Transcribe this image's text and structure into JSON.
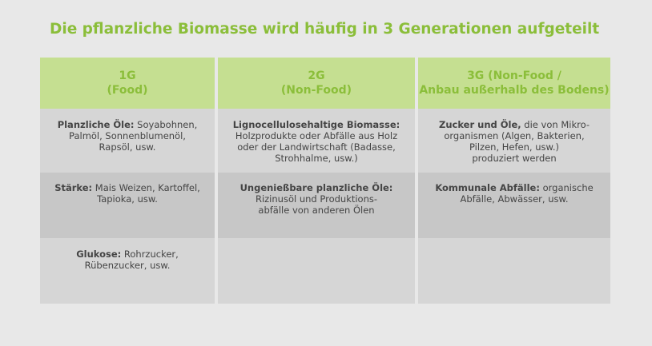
{
  "title": "Die pflanzliche Biomasse wird häufig in 3 Generationen aufgeteilt",
  "colors": {
    "accent": "#8bbe3a",
    "header_bg": "#c5df91",
    "row_light": "#d6d6d6",
    "row_dark": "#c7c7c7",
    "page_bg": "#e8e8e8"
  },
  "columns": [
    {
      "head_line1": "1G",
      "head_line2": "(Food)",
      "rows": [
        {
          "label": "Planzliche Öle:",
          "text": " Soyabohnen,\nPalmöl, Sonnenblumenöl,\nRapsöl, usw."
        },
        {
          "label": "Stärke:",
          "text": " Mais Weizen, Kartoffel,\nTapioka, usw."
        },
        {
          "label": "Glukose:",
          "text": " Rohrzucker,\nRübenzucker, usw."
        }
      ]
    },
    {
      "head_line1": "2G",
      "head_line2": "(Non-Food)",
      "rows": [
        {
          "label": "Lignocellulosehaltige Biomasse:",
          "text": "\nHolzprodukte oder Abfälle aus Holz\noder der Landwirtschaft (Badasse,\nStrohhalme, usw.)"
        },
        {
          "label": "Ungenießbare planzliche Öle:",
          "text": "\nRizinusöl und Produktions-\nabfälle von anderen Ölen"
        },
        {
          "label": "",
          "text": ""
        }
      ]
    },
    {
      "head_line1": "3G (Non-Food /",
      "head_line2": "Anbau außerhalb des Bodens)",
      "rows": [
        {
          "label": "Zucker und Öle,",
          "text": " die von Mikro-\norganismen (Algen, Bakterien,\nPilzen, Hefen, usw.)\nproduziert werden"
        },
        {
          "label": "Kommunale Abfälle:",
          "text": " organische\nAbfälle, Abwässer, usw."
        },
        {
          "label": "",
          "text": ""
        }
      ]
    }
  ]
}
